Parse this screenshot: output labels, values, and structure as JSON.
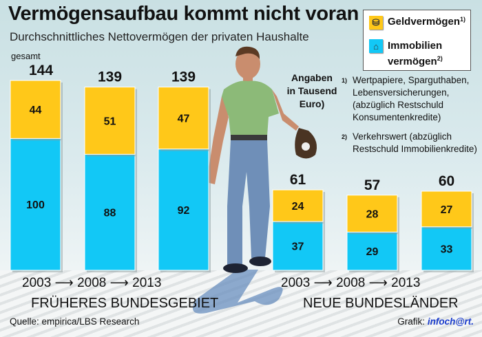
{
  "title": "Vermögensaufbau kommt nicht voran",
  "subtitle": "Durchschnittliches Nettovermögen der privaten Haushalte",
  "legend": {
    "geld": "Geldvermögen",
    "geld_sup": "1)",
    "immo1": "Immobilien",
    "immo2": "vermögen",
    "immo_sup": "2)"
  },
  "notes": [
    {
      "mark": "1)",
      "text": "Wertpapiere, Sparguthaben, Lebensversicherungen, (abzüglich Restschuld Konsumentenkredite)"
    },
    {
      "mark": "2)",
      "text": "Verkehrswert (abzüglich Restschuld Immobilienkredite)"
    }
  ],
  "unit_note": [
    "Angaben",
    "in Tausend",
    "Euro)"
  ],
  "gesamt_label": "gesamt",
  "source": "Quelle: empirica/LBS Research",
  "credit_prefix": "Grafik:",
  "credit_logo": "infoch@rt.",
  "colors": {
    "geldvermoegen": "#ffc819",
    "immobilienvermoegen": "#12c8f6"
  },
  "chart_data": {
    "type": "stacked bar",
    "groups": [
      {
        "name": "FRÜHERES BUNDESGEBIET",
        "categories": [
          "2003",
          "2008",
          "2013"
        ]
      },
      {
        "name": "NEUE BUNDESLÄNDER",
        "categories": [
          "2003",
          "2008",
          "2013"
        ]
      }
    ],
    "categories": [
      "2003",
      "2008",
      "2013",
      "2003",
      "2008",
      "2013"
    ],
    "series": [
      {
        "name": "Immobilienvermögen",
        "values": [
          100,
          88,
          92,
          37,
          29,
          33
        ]
      },
      {
        "name": "Geldvermögen",
        "values": [
          44,
          51,
          47,
          24,
          28,
          27
        ]
      }
    ],
    "totals": [
      144,
      139,
      139,
      61,
      57,
      60
    ],
    "unit": "Tausend Euro",
    "ylim": [
      0,
      144
    ]
  }
}
